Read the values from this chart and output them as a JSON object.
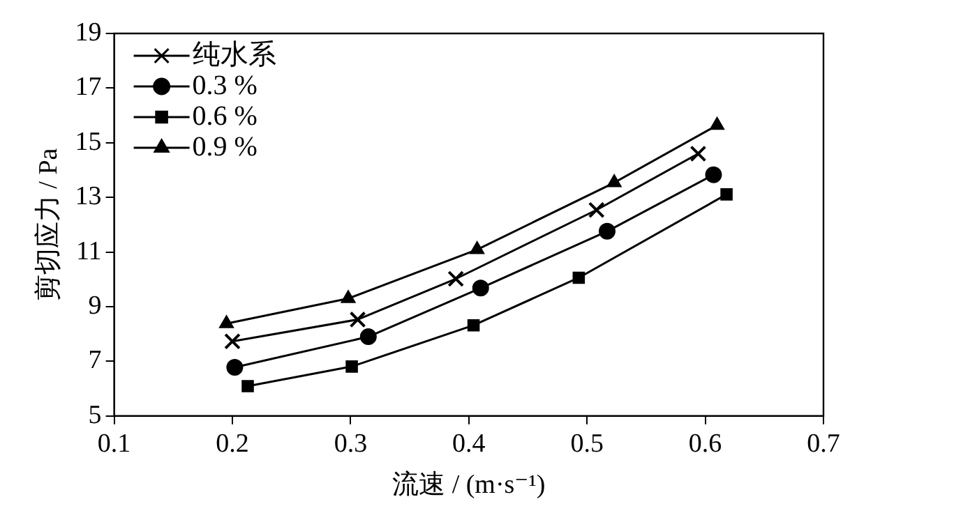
{
  "chart_data": {
    "type": "line",
    "xlabel": "流速 / (m·s⁻¹)",
    "ylabel": "剪切应力 / Pa",
    "xlim": [
      0.1,
      0.7
    ],
    "xticks": [
      0.1,
      0.2,
      0.3,
      0.4,
      0.5,
      0.6,
      0.7
    ],
    "ylim": [
      5,
      19
    ],
    "yticks": [
      5,
      7,
      9,
      11,
      13,
      15,
      17,
      19
    ],
    "grid": false,
    "legend": "top left",
    "line_style": "solid",
    "series": [
      {
        "name": "纯水系",
        "color": "#000000",
        "marker": "cross",
        "x": [
          0.2,
          0.306,
          0.389,
          0.508,
          0.594
        ],
        "values": [
          7.73,
          8.53,
          10.02,
          12.54,
          14.6
        ]
      },
      {
        "name": "0.3 %",
        "color": "#000000",
        "marker": "circle",
        "x": [
          0.202,
          0.315,
          0.41,
          0.517,
          0.607
        ],
        "values": [
          6.78,
          7.9,
          9.68,
          11.76,
          13.83
        ]
      },
      {
        "name": "0.6 %",
        "color": "#000000",
        "marker": "square",
        "x": [
          0.213,
          0.301,
          0.404,
          0.493,
          0.618
        ],
        "values": [
          6.09,
          6.81,
          8.32,
          10.06,
          13.11
        ]
      },
      {
        "name": "0.9 %",
        "color": "#000000",
        "marker": "triangle",
        "x": [
          0.195,
          0.298,
          0.407,
          0.523,
          0.61
        ],
        "values": [
          8.38,
          9.3,
          11.09,
          13.54,
          15.64
        ]
      }
    ]
  }
}
